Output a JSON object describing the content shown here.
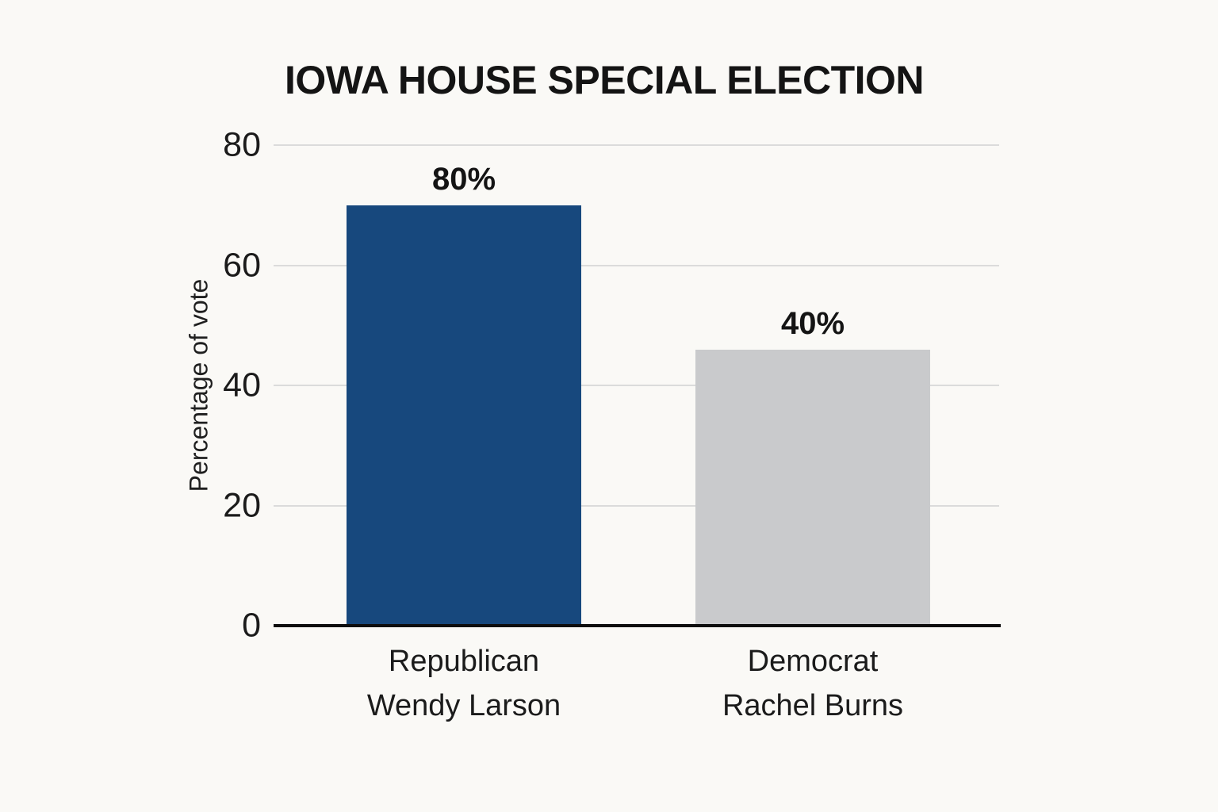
{
  "chart_data": {
    "type": "bar",
    "title": "IOWA HOUSE SPECIAL ELECTION",
    "xlabel": "",
    "ylabel": "Percentage of vote",
    "ylim": [
      0,
      80
    ],
    "yticks": [
      0,
      20,
      40,
      60,
      80
    ],
    "grid": true,
    "legend": false,
    "background_color": "#FAF9F6",
    "gridline_color": "#DBDBDB",
    "axis_color": "#0E0E0E",
    "text_color": "#1B1B1B",
    "categories": [
      "Republican Wendy Larson",
      "Democrat Rachel Burns"
    ],
    "series": [
      {
        "category_lines": [
          "Republican",
          "Wendy Larson"
        ],
        "value_label": "80%",
        "labeled_value": 80,
        "bar_drawn_value": 70,
        "bar_color": "#17487D"
      },
      {
        "category_lines": [
          "Democrat",
          "Rachel Burns"
        ],
        "value_label": "40%",
        "labeled_value": 40,
        "bar_drawn_value": 46,
        "bar_color": "#C9CACC"
      }
    ]
  }
}
